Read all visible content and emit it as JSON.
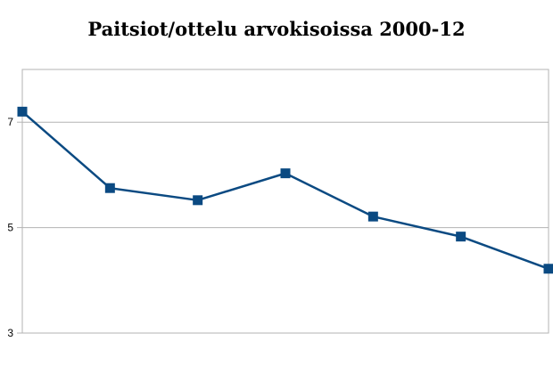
{
  "chart_data": {
    "type": "line",
    "title": "Paitsiot/ottelu arvokisoissa 2000-12",
    "x": [
      1,
      2,
      3,
      4,
      5,
      6,
      7
    ],
    "series": [
      {
        "values": [
          7.2,
          5.75,
          5.52,
          6.03,
          5.21,
          4.83,
          4.22
        ],
        "color": "#0b4a82"
      }
    ],
    "ylim": [
      3,
      8
    ],
    "yticks": [
      3,
      5,
      7
    ],
    "ytick_labels": [
      "3",
      "5",
      "7"
    ],
    "grid": true,
    "marker": "square",
    "line_color": "#0b4a82",
    "grid_color": "#b3b3b3"
  }
}
